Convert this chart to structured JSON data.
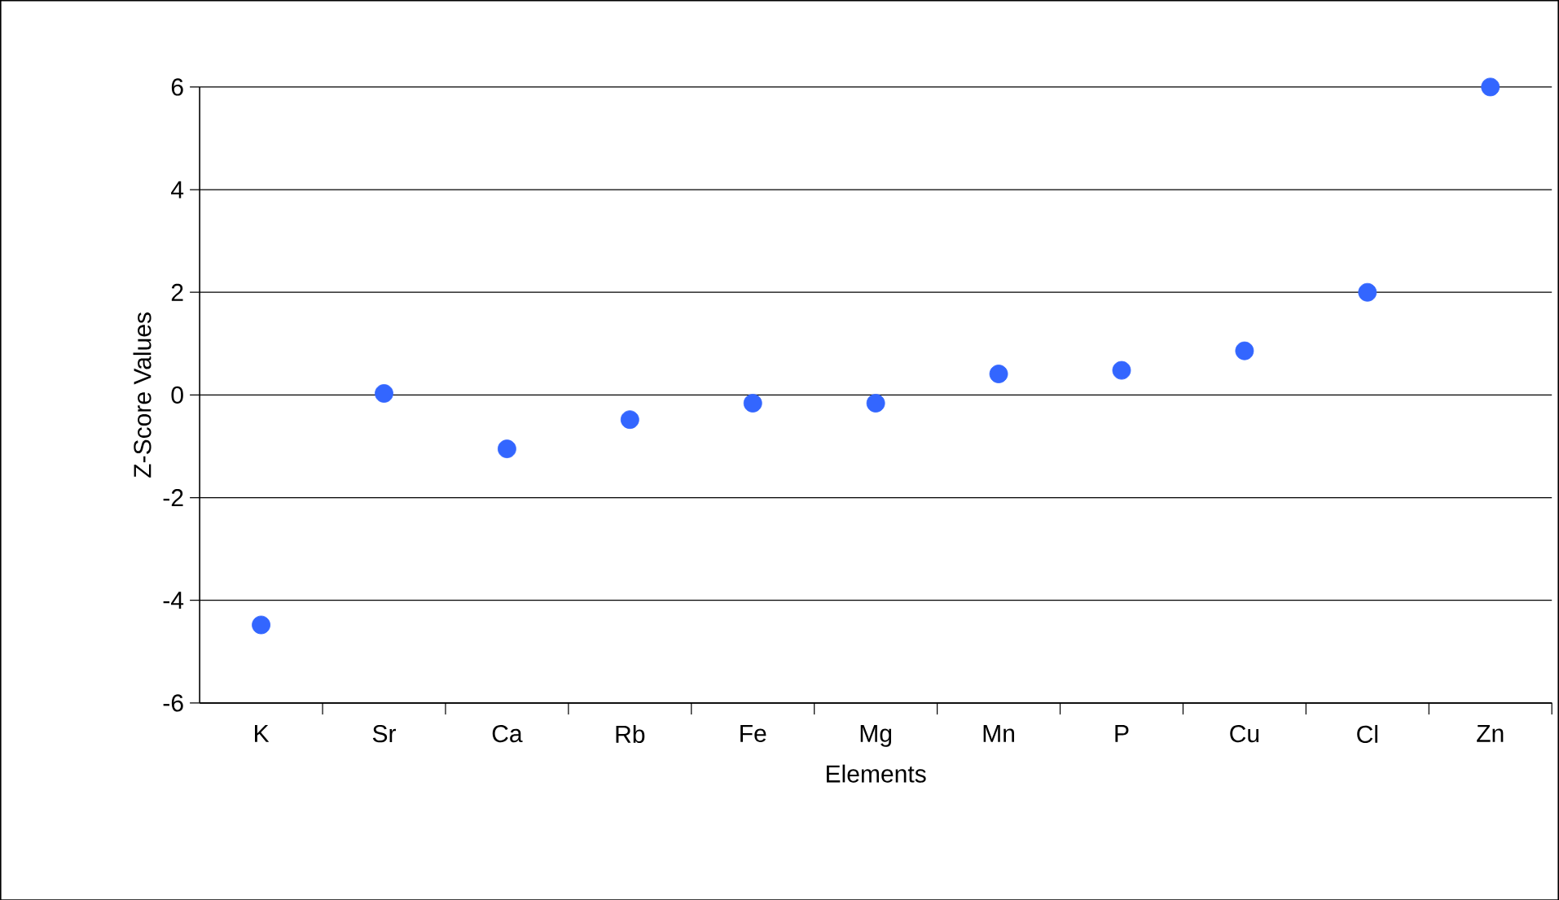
{
  "chart_data": {
    "type": "scatter",
    "xlabel": "Elements",
    "ylabel": "Z-Score Values",
    "categories": [
      "K",
      "Sr",
      "Ca",
      "Rb",
      "Fe",
      "Mg",
      "Mn",
      "P",
      "Cu",
      "Cl",
      "Zn"
    ],
    "values": [
      -4.48,
      0.03,
      -1.05,
      -0.48,
      -0.16,
      -0.16,
      0.41,
      0.48,
      0.86,
      2.0,
      6.0
    ],
    "color": "#3366ff",
    "marker": "circle",
    "grid": "y",
    "ylim": [
      -6,
      6
    ],
    "yticks": [
      -6,
      -4,
      -2,
      0,
      2,
      4,
      6
    ]
  }
}
